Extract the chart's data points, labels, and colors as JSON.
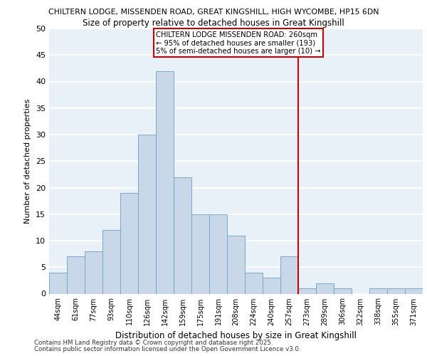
{
  "title1": "CHILTERN LODGE, MISSENDEN ROAD, GREAT KINGSHILL, HIGH WYCOMBE, HP15 6DN",
  "title2": "Size of property relative to detached houses in Great Kingshill",
  "xlabel": "Distribution of detached houses by size in Great Kingshill",
  "ylabel": "Number of detached properties",
  "bin_labels": [
    "44sqm",
    "61sqm",
    "77sqm",
    "93sqm",
    "110sqm",
    "126sqm",
    "142sqm",
    "159sqm",
    "175sqm",
    "191sqm",
    "208sqm",
    "224sqm",
    "240sqm",
    "257sqm",
    "273sqm",
    "289sqm",
    "306sqm",
    "322sqm",
    "338sqm",
    "355sqm",
    "371sqm"
  ],
  "bar_heights": [
    4,
    7,
    8,
    12,
    19,
    30,
    42,
    22,
    15,
    15,
    11,
    4,
    3,
    7,
    1,
    2,
    1,
    0,
    1,
    1,
    1
  ],
  "bar_color": "#cddaе8",
  "bar_edge_color": "#7fa8c8",
  "bg_color": "#e8f0f8",
  "grid_color": "#ffffff",
  "red_line_x": 13.5,
  "red_line_color": "#cc0000",
  "annotation_text": "CHILTERN LODGE MISSENDEN ROAD: 260sqm\n← 95% of detached houses are smaller (193)\n5% of semi-detached houses are larger (10) →",
  "annotation_box_color": "#ffffff",
  "annotation_box_edge": "#cc0000",
  "footer1": "Contains HM Land Registry data © Crown copyright and database right 2025.",
  "footer2": "Contains public sector information licensed under the Open Government Licence v3.0.",
  "ylim": [
    0,
    50
  ],
  "yticks": [
    0,
    5,
    10,
    15,
    20,
    25,
    30,
    35,
    40,
    45,
    50
  ]
}
